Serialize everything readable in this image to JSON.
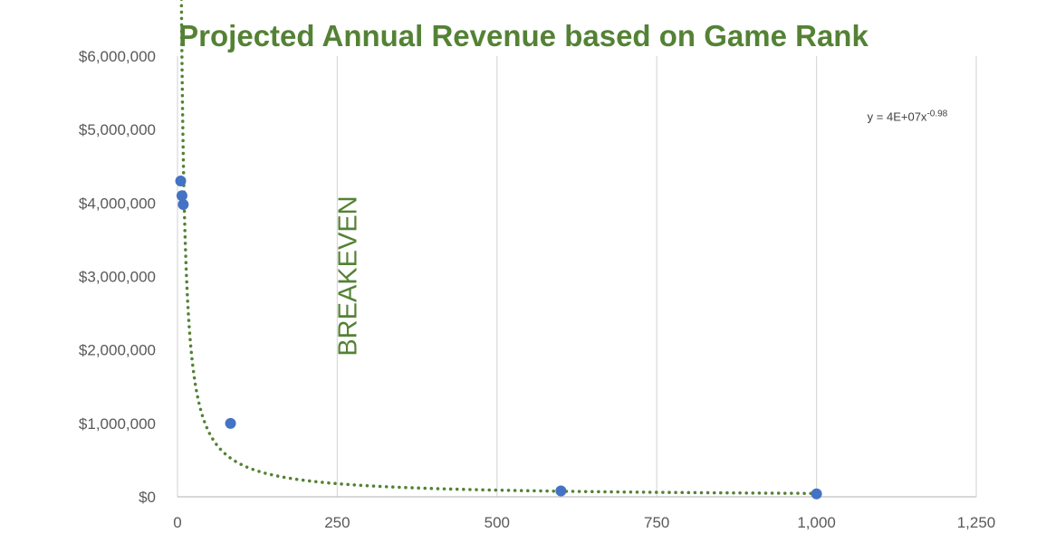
{
  "chart_data": {
    "type": "scatter",
    "title": "Projected Annual Revenue based on Game Rank",
    "xlabel": "",
    "ylabel": "",
    "xlim": [
      0,
      1250
    ],
    "ylim": [
      0,
      6000000
    ],
    "x_ticks": [
      0,
      250,
      500,
      750,
      1000,
      1250
    ],
    "x_tick_labels": [
      "0",
      "250",
      "500",
      "750",
      "1,000",
      "1,250"
    ],
    "y_ticks": [
      0,
      1000000,
      2000000,
      3000000,
      4000000,
      5000000,
      6000000
    ],
    "y_tick_labels": [
      "$0",
      "$1,000,000",
      "$2,000,000",
      "$3,000,000",
      "$4,000,000",
      "$5,000,000",
      "$6,000,000"
    ],
    "grid": "vertical",
    "series": [
      {
        "points": [
          {
            "x": 5,
            "y": 4300000
          },
          {
            "x": 7,
            "y": 4100000
          },
          {
            "x": 9,
            "y": 3980000
          },
          {
            "x": 83,
            "y": 1000000
          },
          {
            "x": 600,
            "y": 80000
          },
          {
            "x": 1000,
            "y": 40000
          }
        ],
        "color": "#4472C4"
      }
    ],
    "trendline": {
      "type": "power",
      "coefficient": 40000000,
      "exponent": -0.98,
      "x_range": [
        5,
        1000
      ],
      "color": "#548235",
      "equation_label": "y = 4E+07x",
      "equation_exponent": "-0.98"
    },
    "annotations": [
      {
        "text": "BREAKEVEN",
        "x": 280,
        "orientation": "vertical"
      }
    ]
  }
}
